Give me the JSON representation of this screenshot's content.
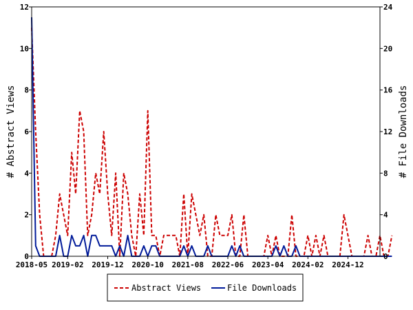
{
  "chart_data": {
    "type": "line",
    "ylabel": "# Abstract Views",
    "y2label": "# File Downloads",
    "ylim": [
      0,
      12
    ],
    "y2lim": [
      0,
      24
    ],
    "yticks": [
      0,
      2,
      4,
      6,
      8,
      10,
      12
    ],
    "y2ticks": [
      0,
      4,
      8,
      12,
      16,
      20,
      24
    ],
    "xlim": [
      "2018-05",
      "2025-08"
    ],
    "xticks": [
      "2018-05",
      "2019-02",
      "2019-12",
      "2020-10",
      "2021-08",
      "2022-06",
      "2023-04",
      "2024-02",
      "2024-12"
    ],
    "grid": false,
    "legend_position": "bottom-center",
    "colors": {
      "abstract_views": "#cc0000",
      "file_downloads": "#001a99"
    },
    "series": [
      {
        "name": "Abstract Views",
        "axis": "left",
        "style": "dashed",
        "points": [
          [
            "2018-05",
            11
          ],
          [
            "2018-06",
            6
          ],
          [
            "2018-07",
            2
          ],
          [
            "2018-08",
            0
          ],
          [
            "2018-09",
            0
          ],
          [
            "2018-10",
            0
          ],
          [
            "2018-11",
            1
          ],
          [
            "2018-12",
            3
          ],
          [
            "2019-01",
            2
          ],
          [
            "2019-02",
            1
          ],
          [
            "2019-03",
            5
          ],
          [
            "2019-04",
            3
          ],
          [
            "2019-05",
            7
          ],
          [
            "2019-06",
            6
          ],
          [
            "2019-07",
            1
          ],
          [
            "2019-08",
            2
          ],
          [
            "2019-09",
            4
          ],
          [
            "2019-10",
            3
          ],
          [
            "2019-11",
            6
          ],
          [
            "2019-12",
            3
          ],
          [
            "2020-01",
            1
          ],
          [
            "2020-02",
            4
          ],
          [
            "2020-03",
            0
          ],
          [
            "2020-04",
            4
          ],
          [
            "2020-05",
            3
          ],
          [
            "2020-06",
            1
          ],
          [
            "2020-07",
            0
          ],
          [
            "2020-08",
            3
          ],
          [
            "2020-09",
            1
          ],
          [
            "2020-10",
            7
          ],
          [
            "2020-11",
            1
          ],
          [
            "2020-12",
            1
          ],
          [
            "2021-01",
            0
          ],
          [
            "2021-02",
            1
          ],
          [
            "2021-03",
            1
          ],
          [
            "2021-04",
            1
          ],
          [
            "2021-05",
            1
          ],
          [
            "2021-06",
            0
          ],
          [
            "2021-07",
            3
          ],
          [
            "2021-08",
            0
          ],
          [
            "2021-09",
            3
          ],
          [
            "2021-10",
            2
          ],
          [
            "2021-11",
            1
          ],
          [
            "2021-12",
            2
          ],
          [
            "2022-01",
            0
          ],
          [
            "2022-02",
            0
          ],
          [
            "2022-03",
            2
          ],
          [
            "2022-04",
            1
          ],
          [
            "2022-05",
            1
          ],
          [
            "2022-06",
            1
          ],
          [
            "2022-07",
            2
          ],
          [
            "2022-08",
            0
          ],
          [
            "2022-09",
            0
          ],
          [
            "2022-10",
            2
          ],
          [
            "2022-11",
            0
          ],
          [
            "2022-12",
            0
          ],
          [
            "2023-01",
            0
          ],
          [
            "2023-02",
            0
          ],
          [
            "2023-03",
            0
          ],
          [
            "2023-04",
            1
          ],
          [
            "2023-05",
            0
          ],
          [
            "2023-06",
            1
          ],
          [
            "2023-07",
            0
          ],
          [
            "2023-08",
            0
          ],
          [
            "2023-09",
            0
          ],
          [
            "2023-10",
            2
          ],
          [
            "2023-11",
            0
          ],
          [
            "2023-12",
            0
          ],
          [
            "2024-01",
            0
          ],
          [
            "2024-02",
            1
          ],
          [
            "2024-03",
            0
          ],
          [
            "2024-04",
            1
          ],
          [
            "2024-05",
            0
          ],
          [
            "2024-06",
            1
          ],
          [
            "2024-07",
            0
          ],
          [
            "2024-08",
            0
          ],
          [
            "2024-09",
            0
          ],
          [
            "2024-10",
            0
          ],
          [
            "2024-11",
            2
          ],
          [
            "2024-12",
            1
          ],
          [
            "2025-01",
            0
          ],
          [
            "2025-02",
            0
          ],
          [
            "2025-03",
            0
          ],
          [
            "2025-04",
            0
          ],
          [
            "2025-05",
            1
          ],
          [
            "2025-06",
            0
          ],
          [
            "2025-07",
            0
          ],
          [
            "2025-08",
            1
          ],
          [
            "2025-09",
            0
          ],
          [
            "2025-10",
            0
          ],
          [
            "2025-11",
            1
          ]
        ]
      },
      {
        "name": "File Downloads",
        "axis": "right",
        "style": "solid",
        "points": [
          [
            "2018-05",
            23
          ],
          [
            "2018-06",
            1
          ],
          [
            "2018-07",
            0
          ],
          [
            "2018-08",
            0
          ],
          [
            "2018-09",
            0
          ],
          [
            "2018-10",
            0
          ],
          [
            "2018-11",
            0
          ],
          [
            "2018-12",
            2
          ],
          [
            "2019-01",
            0
          ],
          [
            "2019-02",
            0
          ],
          [
            "2019-03",
            2
          ],
          [
            "2019-04",
            1
          ],
          [
            "2019-05",
            1
          ],
          [
            "2019-06",
            2
          ],
          [
            "2019-07",
            0
          ],
          [
            "2019-08",
            2
          ],
          [
            "2019-09",
            2
          ],
          [
            "2019-10",
            1
          ],
          [
            "2019-11",
            1
          ],
          [
            "2019-12",
            1
          ],
          [
            "2020-01",
            1
          ],
          [
            "2020-02",
            0
          ],
          [
            "2020-03",
            1
          ],
          [
            "2020-04",
            0
          ],
          [
            "2020-05",
            2
          ],
          [
            "2020-06",
            0
          ],
          [
            "2020-07",
            0
          ],
          [
            "2020-08",
            0
          ],
          [
            "2020-09",
            1
          ],
          [
            "2020-10",
            0
          ],
          [
            "2020-11",
            1
          ],
          [
            "2020-12",
            1
          ],
          [
            "2021-01",
            0
          ],
          [
            "2021-02",
            0
          ],
          [
            "2021-03",
            0
          ],
          [
            "2021-04",
            0
          ],
          [
            "2021-05",
            0
          ],
          [
            "2021-06",
            0
          ],
          [
            "2021-07",
            1
          ],
          [
            "2021-08",
            0
          ],
          [
            "2021-09",
            1
          ],
          [
            "2021-10",
            0
          ],
          [
            "2021-11",
            0
          ],
          [
            "2021-12",
            0
          ],
          [
            "2022-01",
            1
          ],
          [
            "2022-02",
            0
          ],
          [
            "2022-03",
            0
          ],
          [
            "2022-04",
            0
          ],
          [
            "2022-05",
            0
          ],
          [
            "2022-06",
            0
          ],
          [
            "2022-07",
            1
          ],
          [
            "2022-08",
            0
          ],
          [
            "2022-09",
            1
          ],
          [
            "2022-10",
            0
          ],
          [
            "2022-11",
            0
          ],
          [
            "2022-12",
            0
          ],
          [
            "2023-01",
            0
          ],
          [
            "2023-02",
            0
          ],
          [
            "2023-03",
            0
          ],
          [
            "2023-04",
            0
          ],
          [
            "2023-05",
            0
          ],
          [
            "2023-06",
            1
          ],
          [
            "2023-07",
            0
          ],
          [
            "2023-08",
            1
          ],
          [
            "2023-09",
            0
          ],
          [
            "2023-10",
            0
          ],
          [
            "2023-11",
            1
          ],
          [
            "2023-12",
            0
          ],
          [
            "2024-01",
            0
          ],
          [
            "2024-02",
            0
          ],
          [
            "2024-03",
            0
          ],
          [
            "2024-04",
            0
          ],
          [
            "2024-05",
            0
          ],
          [
            "2024-06",
            0
          ],
          [
            "2024-07",
            0
          ],
          [
            "2024-08",
            0
          ],
          [
            "2024-09",
            0
          ],
          [
            "2024-10",
            0
          ],
          [
            "2024-11",
            0
          ],
          [
            "2024-12",
            0
          ],
          [
            "2025-01",
            0
          ],
          [
            "2025-02",
            0
          ],
          [
            "2025-03",
            0
          ],
          [
            "2025-04",
            0
          ],
          [
            "2025-05",
            0
          ],
          [
            "2025-06",
            0
          ],
          [
            "2025-07",
            0
          ],
          [
            "2025-08",
            0
          ],
          [
            "2025-09",
            0
          ],
          [
            "2025-10",
            0
          ],
          [
            "2025-11",
            0
          ]
        ]
      }
    ]
  }
}
